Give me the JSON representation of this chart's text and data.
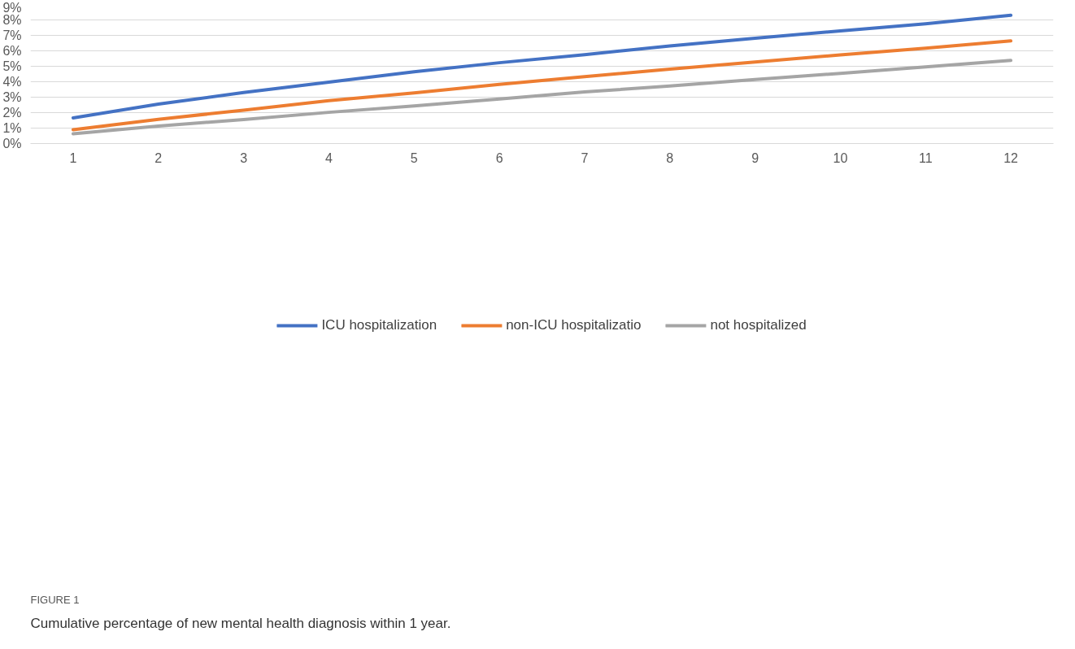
{
  "chart_data": {
    "type": "line",
    "x": [
      1,
      2,
      3,
      4,
      5,
      6,
      7,
      8,
      9,
      10,
      11,
      12
    ],
    "series": [
      {
        "name": "ICU hospitalization",
        "color": "#4472c4",
        "values": [
          1.66,
          2.55,
          3.3,
          3.97,
          4.64,
          5.23,
          5.75,
          6.32,
          6.82,
          7.29,
          7.75,
          8.3
        ]
      },
      {
        "name": "non-ICU hospitalizatio",
        "color": "#ed7d31",
        "values": [
          0.89,
          1.57,
          2.16,
          2.78,
          3.28,
          3.83,
          4.33,
          4.81,
          5.28,
          5.74,
          6.17,
          6.64
        ]
      },
      {
        "name": "not hospitalized",
        "color": "#a5a5a5",
        "values": [
          0.63,
          1.13,
          1.55,
          2.02,
          2.44,
          2.88,
          3.34,
          3.72,
          4.15,
          4.54,
          4.96,
          5.38
        ]
      }
    ],
    "xlim": [
      0.5,
      12.5
    ],
    "xticks": [
      1,
      2,
      3,
      4,
      5,
      6,
      7,
      8,
      9,
      10,
      11,
      12
    ],
    "ylim": [
      0,
      9
    ],
    "yticks": [
      {
        "value": 0,
        "label": "0%"
      },
      {
        "value": 1,
        "label": "1%"
      },
      {
        "value": 2,
        "label": "2%"
      },
      {
        "value": 3,
        "label": "3%"
      },
      {
        "value": 4,
        "label": "4%"
      },
      {
        "value": 5,
        "label": "5%"
      },
      {
        "value": 6,
        "label": "6%"
      },
      {
        "value": 7,
        "label": "7%"
      },
      {
        "value": 8,
        "label": "8%"
      },
      {
        "value": 9,
        "label": "9%"
      }
    ],
    "grid": "y",
    "legend": "bottom",
    "marker": "none",
    "line_style": "solid",
    "annotations": [
      "FIGURE 1",
      "Cumulative percentage of new mental health diagnosis within 1 year."
    ]
  }
}
